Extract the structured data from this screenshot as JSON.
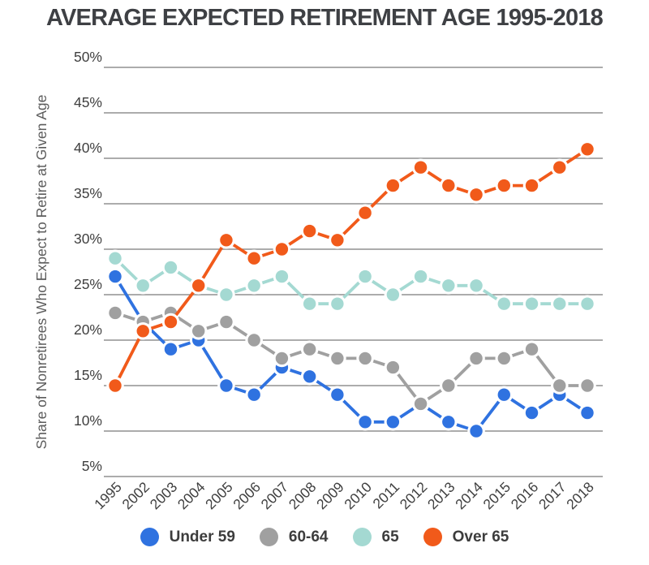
{
  "chart_data": {
    "type": "line",
    "title": "AVERAGE EXPECTED RETIREMENT AGE 1995-2018",
    "xlabel": "",
    "ylabel": "Share of Nonretirees Who Expect to Retire at Given Age",
    "categories": [
      "1995",
      "2002",
      "2003",
      "2004",
      "2005",
      "2006",
      "2007",
      "2008",
      "2009",
      "2010",
      "2011",
      "2012",
      "2013",
      "2014",
      "2015",
      "2016",
      "2017",
      "2018"
    ],
    "y_ticks": [
      "50%",
      "45%",
      "40%",
      "35%",
      "30%",
      "25%",
      "20%",
      "15%",
      "10%",
      "5%"
    ],
    "ylim": [
      5,
      50
    ],
    "y_tick_step": 5,
    "grid": "horizontal-only",
    "legend_position": "bottom",
    "marker_style": "filled-circle-with-white-halo",
    "series": [
      {
        "name": "Under 59",
        "color": "#2f72e0",
        "values": [
          27,
          22,
          19,
          20,
          15,
          14,
          17,
          16,
          14,
          11,
          11,
          13,
          11,
          10,
          14,
          12,
          14,
          12
        ]
      },
      {
        "name": "60-64",
        "color": "#a0a0a0",
        "values": [
          23,
          22,
          23,
          21,
          22,
          20,
          18,
          19,
          18,
          18,
          17,
          13,
          15,
          18,
          18,
          19,
          15,
          15
        ]
      },
      {
        "name": "65",
        "color": "#a4d9d2",
        "values": [
          29,
          26,
          28,
          26,
          25,
          26,
          27,
          24,
          24,
          27,
          25,
          27,
          26,
          26,
          24,
          24,
          24,
          24
        ]
      },
      {
        "name": "Over 65",
        "color": "#f15a1a",
        "values": [
          15,
          21,
          22,
          26,
          31,
          29,
          30,
          32,
          31,
          34,
          37,
          39,
          37,
          36,
          37,
          37,
          39,
          41
        ]
      }
    ],
    "colors": {
      "title_text": "#3e4044",
      "axis_text": "#3f3f3f",
      "axis_title_text": "#5c5c5c",
      "gridline": "#909090",
      "background": "#ffffff"
    }
  }
}
